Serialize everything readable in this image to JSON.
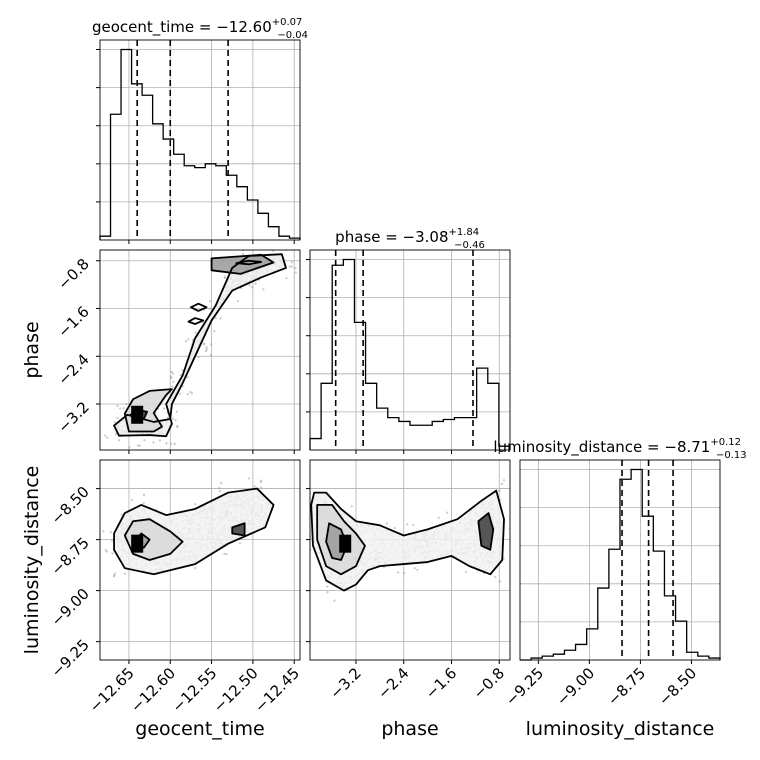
{
  "chart_data": {
    "type": "corner",
    "parameters": [
      {
        "name": "geocent_time",
        "xlabel": "geocent_time",
        "title_main": "geocent_time = −12.60",
        "title_sup": "+0.07",
        "title_sub": "−0.04",
        "range": [
          -12.685,
          -12.443
        ],
        "ticks": [
          -12.65,
          -12.6,
          -12.55,
          -12.5,
          -12.45
        ],
        "tick_labels": [
          "−12.65",
          "−12.60",
          "−12.55",
          "−12.50",
          "−12.45"
        ],
        "quantiles": [
          -12.64,
          -12.6,
          -12.53
        ],
        "hist": [
          0.02,
          0.66,
          1.0,
          0.82,
          0.76,
          0.61,
          0.53,
          0.45,
          0.39,
          0.38,
          0.4,
          0.39,
          0.34,
          0.28,
          0.21,
          0.14,
          0.07,
          0.02,
          0.01
        ]
      },
      {
        "name": "phase",
        "xlabel": "phase",
        "ylabel": "phase",
        "title_main": "phase = −3.08",
        "title_sup": "+1.84",
        "title_sub": "−0.46",
        "range": [
          -3.97,
          -0.62
        ],
        "ticks": [
          -3.2,
          -2.4,
          -1.6,
          -0.8
        ],
        "tick_labels": [
          "−3.2",
          "−2.4",
          "−1.6",
          "−0.8"
        ],
        "quantiles": [
          -3.54,
          -3.08,
          -1.24
        ],
        "hist": [
          0.06,
          0.35,
          0.97,
          1.0,
          0.67,
          0.35,
          0.22,
          0.17,
          0.15,
          0.13,
          0.13,
          0.15,
          0.16,
          0.17,
          0.17,
          0.43,
          0.35,
          0.02
        ]
      },
      {
        "name": "luminosity_distance",
        "xlabel": "luminosity_distance",
        "ylabel": "luminosity_distance",
        "title_main": "luminosity_distance = −8.71",
        "title_sup": "+0.12",
        "title_sub": "−0.13",
        "range": [
          -9.34,
          -8.36
        ],
        "ticks": [
          -9.25,
          -9.0,
          -8.75,
          -8.5
        ],
        "tick_labels": [
          "−9.25",
          "−9.00",
          "−8.75",
          "−8.50"
        ],
        "quantiles": [
          -8.84,
          -8.71,
          -8.59
        ],
        "hist": [
          0.0,
          0.01,
          0.02,
          0.03,
          0.05,
          0.08,
          0.16,
          0.37,
          0.57,
          0.93,
          0.98,
          0.74,
          0.56,
          0.33,
          0.2,
          0.04,
          0.02,
          0.01
        ]
      }
    ],
    "contour_panels": [
      {
        "x": "geocent_time",
        "y": "phase",
        "density_peak": [
          -12.64,
          -3.38
        ],
        "contours": [
          [
            [
              -12.662,
              -3.73
            ],
            [
              -12.625,
              -3.72
            ],
            [
              -12.605,
              -3.74
            ],
            [
              -12.598,
              -3.53
            ],
            [
              -12.605,
              -3.2
            ],
            [
              -12.585,
              -2.72
            ],
            [
              -12.57,
              -2.1
            ],
            [
              -12.545,
              -1.55
            ],
            [
              -12.525,
              -0.92
            ],
            [
              -12.505,
              -0.72
            ],
            [
              -12.465,
              -0.69
            ],
            [
              -12.46,
              -0.92
            ],
            [
              -12.49,
              -1.08
            ],
            [
              -12.525,
              -1.3
            ],
            [
              -12.55,
              -1.8
            ],
            [
              -12.565,
              -2.25
            ],
            [
              -12.585,
              -2.85
            ],
            [
              -12.598,
              -3.2
            ],
            [
              -12.6,
              -3.45
            ],
            [
              -12.62,
              -3.5
            ],
            [
              -12.652,
              -3.38
            ],
            [
              -12.668,
              -3.56
            ],
            [
              -12.662,
              -3.73
            ]
          ],
          [
            [
              -12.65,
              -3.66
            ],
            [
              -12.62,
              -3.66
            ],
            [
              -12.61,
              -3.58
            ],
            [
              -12.62,
              -3.35
            ],
            [
              -12.605,
              -3.05
            ],
            [
              -12.598,
              -2.95
            ],
            [
              -12.625,
              -2.98
            ],
            [
              -12.645,
              -3.12
            ],
            [
              -12.655,
              -3.36
            ],
            [
              -12.65,
              -3.66
            ]
          ],
          [
            [
              -12.55,
              -0.76
            ],
            [
              -12.49,
              -0.7
            ],
            [
              -12.475,
              -0.83
            ],
            [
              -12.515,
              -1.02
            ],
            [
              -12.55,
              -0.96
            ],
            [
              -12.55,
              -0.76
            ]
          ],
          [
            [
              -12.645,
              -3.45
            ],
            [
              -12.632,
              -3.45
            ],
            [
              -12.628,
              -3.33
            ],
            [
              -12.64,
              -3.3
            ],
            [
              -12.648,
              -3.38
            ],
            [
              -12.645,
              -3.45
            ]
          ],
          [
            [
              -12.505,
              -0.8
            ],
            [
              -12.49,
              -0.82
            ],
            [
              -12.505,
              -0.86
            ],
            [
              -12.52,
              -0.84
            ],
            [
              -12.505,
              -0.8
            ]
          ],
          [
            [
              -12.566,
              -1.52
            ],
            [
              -12.556,
              -1.58
            ],
            [
              -12.566,
              -1.64
            ],
            [
              -12.575,
              -1.58
            ],
            [
              -12.566,
              -1.52
            ]
          ],
          [
            [
              -12.57,
              -1.76
            ],
            [
              -12.56,
              -1.8
            ],
            [
              -12.57,
              -1.86
            ],
            [
              -12.578,
              -1.82
            ],
            [
              -12.57,
              -1.76
            ]
          ]
        ]
      },
      {
        "x": "geocent_time",
        "y": "luminosity_distance",
        "density_peak": [
          -12.64,
          -8.77
        ],
        "contours": [
          [
            [
              -12.668,
              -8.72
            ],
            [
              -12.655,
              -8.62
            ],
            [
              -12.635,
              -8.58
            ],
            [
              -12.605,
              -8.63
            ],
            [
              -12.57,
              -8.6
            ],
            [
              -12.53,
              -8.52
            ],
            [
              -12.495,
              -8.5
            ],
            [
              -12.475,
              -8.58
            ],
            [
              -12.485,
              -8.69
            ],
            [
              -12.53,
              -8.77
            ],
            [
              -12.57,
              -8.87
            ],
            [
              -12.62,
              -8.92
            ],
            [
              -12.655,
              -8.89
            ],
            [
              -12.668,
              -8.8
            ],
            [
              -12.668,
              -8.72
            ]
          ],
          [
            [
              -12.655,
              -8.73
            ],
            [
              -12.645,
              -8.66
            ],
            [
              -12.625,
              -8.65
            ],
            [
              -12.6,
              -8.71
            ],
            [
              -12.585,
              -8.76
            ],
            [
              -12.6,
              -8.82
            ],
            [
              -12.625,
              -8.85
            ],
            [
              -12.645,
              -8.82
            ],
            [
              -12.655,
              -8.73
            ]
          ],
          [
            [
              -12.645,
              -8.76
            ],
            [
              -12.635,
              -8.72
            ],
            [
              -12.625,
              -8.75
            ],
            [
              -12.632,
              -8.79
            ],
            [
              -12.645,
              -8.76
            ]
          ],
          [
            [
              -12.525,
              -8.69
            ],
            [
              -12.51,
              -8.67
            ],
            [
              -12.51,
              -8.73
            ],
            [
              -12.525,
              -8.72
            ],
            [
              -12.525,
              -8.69
            ]
          ]
        ]
      },
      {
        "x": "phase",
        "y": "luminosity_distance",
        "density_peak": [
          -3.38,
          -8.77
        ],
        "contours": [
          [
            [
              -3.95,
              -8.58
            ],
            [
              -3.9,
              -8.52
            ],
            [
              -3.7,
              -8.52
            ],
            [
              -3.45,
              -8.6
            ],
            [
              -3.2,
              -8.66
            ],
            [
              -2.8,
              -8.68
            ],
            [
              -2.4,
              -8.73
            ],
            [
              -2.0,
              -8.7
            ],
            [
              -1.5,
              -8.65
            ],
            [
              -1.1,
              -8.56
            ],
            [
              -0.85,
              -8.51
            ],
            [
              -0.72,
              -8.65
            ],
            [
              -0.75,
              -8.85
            ],
            [
              -0.95,
              -8.92
            ],
            [
              -1.3,
              -8.88
            ],
            [
              -1.6,
              -8.83
            ],
            [
              -2.0,
              -8.86
            ],
            [
              -2.4,
              -8.87
            ],
            [
              -2.8,
              -8.88
            ],
            [
              -3.0,
              -8.9
            ],
            [
              -3.2,
              -8.97
            ],
            [
              -3.4,
              -9.0
            ],
            [
              -3.7,
              -8.95
            ],
            [
              -3.92,
              -8.78
            ],
            [
              -3.95,
              -8.58
            ]
          ],
          [
            [
              -3.85,
              -8.58
            ],
            [
              -3.6,
              -8.58
            ],
            [
              -3.4,
              -8.66
            ],
            [
              -3.2,
              -8.72
            ],
            [
              -3.05,
              -8.78
            ],
            [
              -3.2,
              -8.88
            ],
            [
              -3.45,
              -8.92
            ],
            [
              -3.7,
              -8.88
            ],
            [
              -3.85,
              -8.75
            ],
            [
              -3.85,
              -8.58
            ]
          ],
          [
            [
              -3.65,
              -8.67
            ],
            [
              -3.45,
              -8.7
            ],
            [
              -3.35,
              -8.78
            ],
            [
              -3.45,
              -8.85
            ],
            [
              -3.6,
              -8.84
            ],
            [
              -3.7,
              -8.76
            ],
            [
              -3.65,
              -8.67
            ]
          ],
          [
            [
              -1.15,
              -8.66
            ],
            [
              -0.98,
              -8.62
            ],
            [
              -0.9,
              -8.7
            ],
            [
              -0.95,
              -8.8
            ],
            [
              -1.1,
              -8.78
            ],
            [
              -1.15,
              -8.66
            ]
          ]
        ]
      }
    ]
  }
}
